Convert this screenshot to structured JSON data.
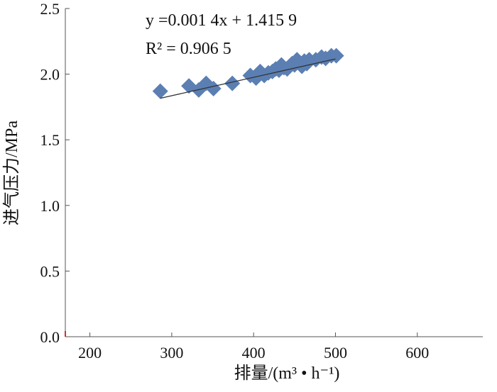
{
  "chart_data": {
    "type": "scatter",
    "title": "",
    "xlabel": "排量/(m³ • h⁻¹)",
    "ylabel": "进气压力/MPa",
    "xlim": [
      170,
      680
    ],
    "ylim": [
      0,
      2.5
    ],
    "xticks": [
      "200",
      "300",
      "400",
      "500",
      "600"
    ],
    "yticks": [
      "0.0",
      "0.5",
      "1.0",
      "1.5",
      "2.0",
      "2.5"
    ],
    "grid": false,
    "marker": "diamond",
    "marker_color": "#5b7fb3",
    "trendline_color": "#333333",
    "trendline": {
      "slope": 0.0014,
      "intercept": 1.4159,
      "x_range": [
        286,
        500
      ]
    },
    "annotation": {
      "equation": "y =0.001 4x + 1.415 9",
      "r2": "R² = 0.906 5"
    },
    "points": [
      {
        "x": 286,
        "y": 1.87
      },
      {
        "x": 321,
        "y": 1.91
      },
      {
        "x": 333,
        "y": 1.88
      },
      {
        "x": 342,
        "y": 1.93
      },
      {
        "x": 351,
        "y": 1.89
      },
      {
        "x": 374,
        "y": 1.93
      },
      {
        "x": 396,
        "y": 1.99
      },
      {
        "x": 403,
        "y": 1.97
      },
      {
        "x": 408,
        "y": 2.02
      },
      {
        "x": 413,
        "y": 1.99
      },
      {
        "x": 418,
        "y": 2.01
      },
      {
        "x": 423,
        "y": 2.02
      },
      {
        "x": 427,
        "y": 2.04
      },
      {
        "x": 431,
        "y": 2.03
      },
      {
        "x": 434,
        "y": 2.07
      },
      {
        "x": 437,
        "y": 2.05
      },
      {
        "x": 441,
        "y": 2.04
      },
      {
        "x": 444,
        "y": 2.06
      },
      {
        "x": 447,
        "y": 2.08
      },
      {
        "x": 450,
        "y": 2.07
      },
      {
        "x": 453,
        "y": 2.11
      },
      {
        "x": 456,
        "y": 2.09
      },
      {
        "x": 459,
        "y": 2.06
      },
      {
        "x": 462,
        "y": 2.1
      },
      {
        "x": 465,
        "y": 2.08
      },
      {
        "x": 468,
        "y": 2.11
      },
      {
        "x": 476,
        "y": 2.11
      },
      {
        "x": 483,
        "y": 2.13
      },
      {
        "x": 488,
        "y": 2.12
      },
      {
        "x": 495,
        "y": 2.14
      },
      {
        "x": 501,
        "y": 2.14
      }
    ]
  }
}
